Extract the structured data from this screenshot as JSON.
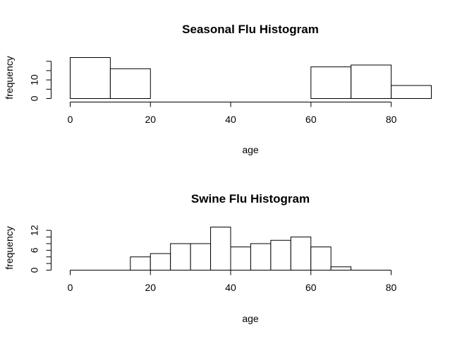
{
  "chart_data": [
    {
      "type": "bar",
      "title": "Seasonal Flu Histogram",
      "xlabel": "age",
      "ylabel": "frequency",
      "bins": [
        {
          "start": 0,
          "end": 10,
          "value": 22
        },
        {
          "start": 10,
          "end": 20,
          "value": 16
        },
        {
          "start": 20,
          "end": 30,
          "value": 0
        },
        {
          "start": 30,
          "end": 40,
          "value": 0
        },
        {
          "start": 40,
          "end": 50,
          "value": 0
        },
        {
          "start": 50,
          "end": 60,
          "value": 0
        },
        {
          "start": 60,
          "end": 70,
          "value": 17
        },
        {
          "start": 70,
          "end": 80,
          "value": 18
        },
        {
          "start": 80,
          "end": 90,
          "value": 7
        }
      ],
      "xlim": [
        0,
        90
      ],
      "xticks": [
        0,
        20,
        40,
        60,
        80
      ],
      "ylim": [
        0,
        22
      ],
      "yticks": [
        0,
        5,
        10,
        15,
        20
      ],
      "ytick_labels": [
        "0",
        "",
        "10",
        "",
        ""
      ],
      "grid": false
    },
    {
      "type": "bar",
      "title": "Swine Flu Histogram",
      "xlabel": "age",
      "ylabel": "frequency",
      "bins": [
        {
          "start": 15,
          "end": 20,
          "value": 4
        },
        {
          "start": 20,
          "end": 25,
          "value": 5
        },
        {
          "start": 25,
          "end": 30,
          "value": 8
        },
        {
          "start": 30,
          "end": 35,
          "value": 8
        },
        {
          "start": 35,
          "end": 40,
          "value": 13
        },
        {
          "start": 40,
          "end": 45,
          "value": 7
        },
        {
          "start": 45,
          "end": 50,
          "value": 8
        },
        {
          "start": 50,
          "end": 55,
          "value": 9
        },
        {
          "start": 55,
          "end": 60,
          "value": 10
        },
        {
          "start": 60,
          "end": 65,
          "value": 7
        },
        {
          "start": 65,
          "end": 70,
          "value": 1
        }
      ],
      "xlim": [
        0,
        80
      ],
      "xticks": [
        0,
        20,
        40,
        60,
        80
      ],
      "ylim": [
        0,
        13
      ],
      "yticks": [
        0,
        2,
        4,
        6,
        8,
        10,
        12
      ],
      "ytick_labels": [
        "0",
        "",
        "",
        "6",
        "",
        "",
        "12"
      ],
      "grid": false
    }
  ]
}
